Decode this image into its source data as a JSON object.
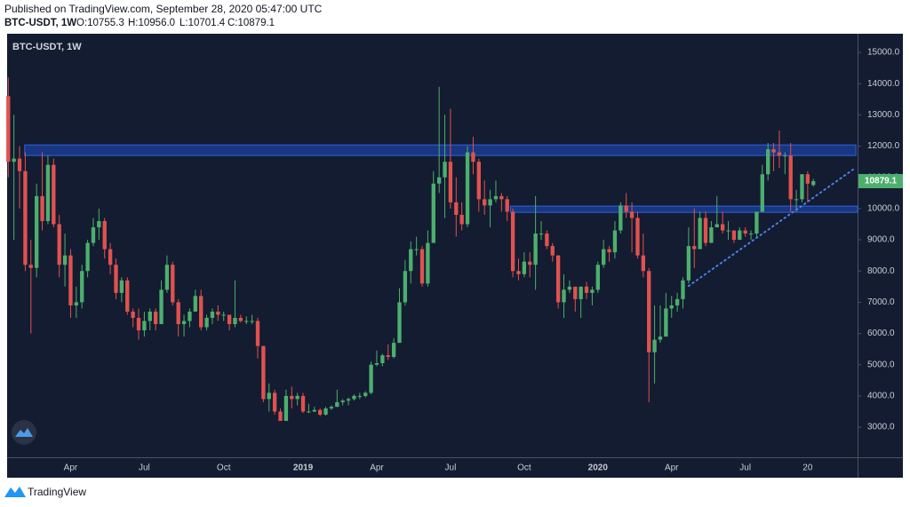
{
  "header": {
    "published": "Published on TradingView.com, September 28, 2020 05:47:00 UTC",
    "symbol": "BTC-USDT, 1W",
    "ohlc_labels": [
      "O:10755.3",
      "H:10956.0",
      "L:10701.4",
      "C:10879.1"
    ]
  },
  "footer": {
    "brand": "TradingView"
  },
  "chart_data": {
    "type": "candlestick",
    "title": "BTC-USDT, 1W",
    "up_color": "#4caf6e",
    "down_color": "#e0524f",
    "background": "#131c30",
    "grid": false,
    "categories": [
      null,
      null,
      null,
      null,
      null,
      null,
      null,
      null,
      null,
      null,
      null,
      "Apr",
      null,
      null,
      null,
      null,
      null,
      null,
      null,
      null,
      null,
      null,
      null,
      null,
      "Jul",
      null,
      null,
      null,
      null,
      null,
      null,
      null,
      null,
      null,
      null,
      null,
      null,
      null,
      "Oct",
      null,
      null,
      null,
      null,
      null,
      null,
      null,
      null,
      null,
      null,
      null,
      null,
      null,
      "2019",
      null,
      null,
      null,
      null,
      null,
      null,
      null,
      null,
      null,
      null,
      null,
      null,
      "Apr",
      null,
      null,
      null,
      null,
      null,
      null,
      null,
      null,
      null,
      null,
      null,
      null,
      "Jul",
      null,
      null,
      null,
      null,
      null,
      null,
      null,
      null,
      null,
      null,
      null,
      null,
      "Oct",
      null,
      null,
      null,
      null,
      null,
      null,
      null,
      null,
      null,
      null,
      null,
      null,
      "2020",
      null,
      null,
      null,
      null,
      null,
      null,
      null,
      null,
      null,
      null,
      null,
      null,
      "Apr",
      null,
      null,
      null,
      null,
      null,
      null,
      null,
      null,
      null,
      null,
      null,
      null,
      "Jul",
      null,
      null,
      null,
      null,
      null,
      null,
      null,
      null,
      null,
      null,
      "20",
      null
    ],
    "open": [
      13600,
      11500,
      11600,
      11200,
      8200,
      8100,
      10400,
      9600,
      11400,
      9500,
      8200,
      8500,
      6900,
      7000,
      8000,
      8900,
      9400,
      9600,
      8700,
      8200,
      7300,
      7700,
      6700,
      6500,
      6100,
      6400,
      6700,
      6300,
      7400,
      8200,
      7000,
      6300,
      6400,
      6700,
      7200,
      6200,
      6500,
      6700,
      6600,
      6600,
      6300,
      6500,
      6400,
      6400,
      6400,
      5600,
      3900,
      4100,
      3500,
      3200,
      4000,
      3900,
      4000,
      3500,
      3500,
      3550,
      3400,
      3600,
      3650,
      3800,
      3850,
      3900,
      4000,
      4000,
      4100,
      5000,
      5050,
      5300,
      5250,
      5700,
      7000,
      8000,
      8700,
      8700,
      7600,
      8900,
      10800,
      11000,
      11500,
      10200,
      9800,
      9500,
      11800,
      11500,
      10300,
      10100,
      10300,
      10400,
      10300,
      9900,
      8000,
      7900,
      8300,
      8200,
      9200,
      9200,
      8800,
      8500,
      7000,
      7400,
      7500,
      7100,
      7500,
      7300,
      7400,
      8200,
      8700,
      8600,
      9300,
      10100,
      9900,
      9700,
      8500,
      8000,
      5400,
      5800,
      5900,
      6800,
      6900,
      7100,
      7700,
      8800,
      8700,
      9700,
      8900,
      9400,
      9500,
      9300,
      9300,
      9000,
      9300,
      9200,
      9200,
      9900,
      11100,
      11900,
      11800,
      11700,
      11700,
      10300,
      10300,
      11100,
      10755.3
    ],
    "high": [
      14200,
      13000,
      12000,
      11800,
      9000,
      10800,
      11800,
      11700,
      11600,
      9800,
      9200,
      8700,
      7500,
      8200,
      9000,
      9700,
      10000,
      9700,
      8900,
      8400,
      7800,
      7800,
      6800,
      6800,
      6700,
      6800,
      6800,
      7700,
      8500,
      8300,
      7100,
      6600,
      6800,
      7400,
      7400,
      6600,
      6800,
      6900,
      6700,
      6600,
      7700,
      6600,
      6550,
      6600,
      6500,
      5600,
      4400,
      4200,
      3600,
      4200,
      4300,
      4100,
      4100,
      3750,
      3650,
      3600,
      3650,
      3700,
      4200,
      3900,
      3950,
      4050,
      4100,
      4150,
      5100,
      5450,
      5350,
      5650,
      5850,
      7450,
      8350,
      8950,
      9100,
      8800,
      9300,
      11200,
      13900,
      13000,
      13200,
      11000,
      10200,
      12000,
      12300,
      11600,
      10900,
      10600,
      10900,
      10500,
      10400,
      10000,
      8400,
      8600,
      8600,
      10400,
      9600,
      9300,
      8900,
      8500,
      7900,
      7700,
      7500,
      7500,
      7650,
      7500,
      8300,
      9000,
      8800,
      9600,
      10200,
      10500,
      10200,
      9900,
      9200,
      8100,
      6900,
      6900,
      7300,
      7200,
      7300,
      7800,
      9400,
      10000,
      9900,
      9900,
      9600,
      10400,
      9900,
      9600,
      9300,
      9400,
      9400,
      9300,
      9900,
      11400,
      12100,
      12100,
      12500,
      11800,
      12100,
      10600,
      11100,
      11200,
      10956
    ],
    "low": [
      11000,
      9000,
      10000,
      8000,
      6000,
      7800,
      9300,
      9500,
      9400,
      7800,
      7500,
      6500,
      6500,
      6800,
      7800,
      8800,
      9000,
      8400,
      7900,
      7100,
      7000,
      6600,
      6200,
      5800,
      5900,
      6100,
      6100,
      6300,
      7300,
      6900,
      5900,
      5900,
      6200,
      6700,
      6100,
      6100,
      6300,
      6400,
      6400,
      6100,
      6200,
      6350,
      6300,
      6300,
      5200,
      3800,
      3500,
      3400,
      3200,
      3200,
      3600,
      3700,
      3450,
      3450,
      3480,
      3350,
      3370,
      3550,
      3650,
      3700,
      3700,
      3850,
      3900,
      3950,
      4050,
      4950,
      4950,
      5150,
      5200,
      5700,
      6900,
      7600,
      8500,
      7500,
      7500,
      8900,
      10500,
      9700,
      10000,
      9100,
      9300,
      9400,
      11100,
      9900,
      9800,
      9400,
      10200,
      9900,
      9600,
      7800,
      7700,
      7800,
      7800,
      7400,
      9000,
      8700,
      8300,
      6800,
      6500,
      7300,
      6700,
      6500,
      7100,
      6900,
      7300,
      8100,
      8300,
      8400,
      9200,
      9700,
      8600,
      8400,
      7800,
      3800,
      4400,
      5700,
      5900,
      6500,
      6700,
      6800,
      7600,
      8100,
      8800,
      8800,
      8900,
      9400,
      9200,
      9000,
      8900,
      9000,
      9100,
      9000,
      9100,
      9900,
      10900,
      11200,
      11300,
      11100,
      9900,
      9900,
      10200,
      10200,
      10701.4
    ],
    "close": [
      11500,
      11600,
      11200,
      8200,
      8100,
      10400,
      9600,
      11400,
      9500,
      8200,
      8500,
      6900,
      7000,
      8000,
      8900,
      9400,
      9600,
      8700,
      8200,
      7300,
      7700,
      6700,
      6500,
      6100,
      6400,
      6700,
      6300,
      7400,
      8200,
      7000,
      6300,
      6400,
      6700,
      7200,
      6200,
      6500,
      6700,
      6600,
      6600,
      6300,
      6500,
      6400,
      6400,
      6400,
      5600,
      3900,
      4100,
      3500,
      3200,
      4000,
      3900,
      4000,
      3500,
      3500,
      3550,
      3400,
      3600,
      3650,
      3800,
      3850,
      3900,
      4000,
      4000,
      4100,
      5000,
      5050,
      5300,
      5250,
      5700,
      7000,
      8000,
      8700,
      8700,
      7600,
      8900,
      10800,
      11000,
      11500,
      10200,
      9800,
      9500,
      11800,
      11500,
      10300,
      10100,
      10300,
      10400,
      10300,
      9900,
      8000,
      7900,
      8300,
      8200,
      9200,
      9200,
      8800,
      8500,
      7000,
      7400,
      7500,
      7100,
      7500,
      7300,
      7400,
      8200,
      8700,
      8600,
      9300,
      10100,
      9900,
      9700,
      8500,
      8000,
      5400,
      5800,
      5900,
      6800,
      6900,
      7100,
      7700,
      8800,
      8700,
      9700,
      8900,
      9400,
      9500,
      9300,
      9300,
      9000,
      9300,
      9200,
      9200,
      9900,
      11100,
      11900,
      11800,
      11700,
      11700,
      10300,
      10300,
      11100,
      10800,
      10879.1
    ],
    "xlim": [
      -0.2,
      149.8
    ],
    "ylim": [
      2035,
      15600
    ],
    "yticks": [
      {
        "value": 3000,
        "label": "3000.0"
      },
      {
        "value": 4000,
        "label": "4000.0"
      },
      {
        "value": 5000,
        "label": "5000.0"
      },
      {
        "value": 6000,
        "label": "6000.0"
      },
      {
        "value": 7000,
        "label": "7000.0"
      },
      {
        "value": 8000,
        "label": "8000.0"
      },
      {
        "value": 9000,
        "label": "9000.0"
      },
      {
        "value": 10000,
        "label": "10000.0"
      },
      {
        "value": 11000,
        "label": "11000.0"
      },
      {
        "value": 12000,
        "label": "12000.0"
      },
      {
        "value": 13000,
        "label": "13000.0"
      },
      {
        "value": 14000,
        "label": "14000.0"
      },
      {
        "value": 15000,
        "label": "15000.0"
      }
    ],
    "zones": [
      {
        "x": [
          2.9,
          149.5
        ],
        "y": [
          11700,
          12040
        ]
      },
      {
        "x": [
          88.6,
          149.8
        ],
        "y": [
          9880,
          10080
        ]
      }
    ],
    "zone_color": "#1c3f9e",
    "trendline": {
      "x": [
        120.0,
        149.0
      ],
      "y": [
        7520,
        11250
      ],
      "color": "#4a7ee8"
    }
  }
}
